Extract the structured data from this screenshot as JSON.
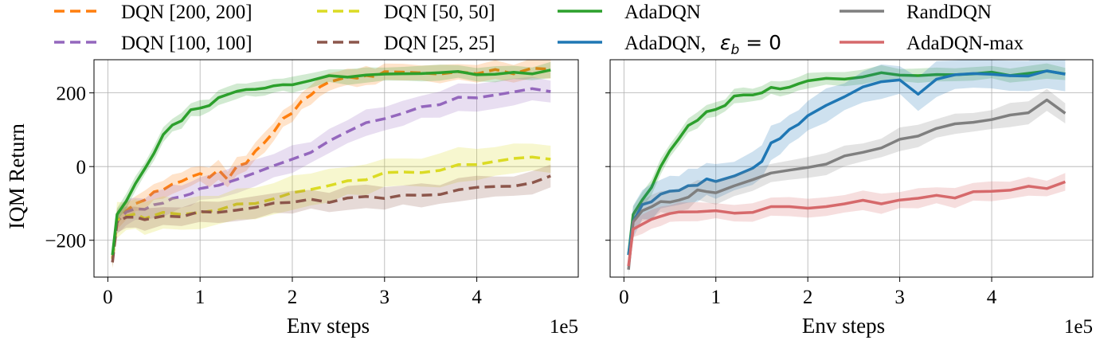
{
  "chart_data": [
    {
      "type": "line",
      "panel": "left",
      "xlabel": "Env steps",
      "ylabel": "IQM Return",
      "x_multiplier_label": "1e5",
      "xlim": [
        -0.15,
        5.1
      ],
      "ylim": [
        -300,
        290
      ],
      "xticks": [
        0,
        1,
        2,
        3,
        4
      ],
      "xtick_labels": [
        "0",
        "1",
        "2",
        "3",
        "4"
      ],
      "yticks": [
        -200,
        0,
        200
      ],
      "ytick_labels": [
        "−200",
        "0",
        "200"
      ],
      "grid": true,
      "series": [
        {
          "key": "dqn200",
          "name": "DQN [200, 200]",
          "style": "dashed",
          "color": "#ff7f0e",
          "x": [
            0.05,
            0.1,
            0.2,
            0.3,
            0.4,
            0.5,
            0.6,
            0.7,
            0.8,
            0.9,
            1.0,
            1.1,
            1.2,
            1.3,
            1.4,
            1.5,
            1.6,
            1.7,
            1.8,
            1.9,
            2.0,
            2.1,
            2.2,
            2.3,
            2.4,
            2.5,
            2.6,
            2.7,
            2.8,
            2.9,
            3.0,
            3.2,
            3.4,
            3.6,
            3.8,
            4.0,
            4.2,
            4.4,
            4.6,
            4.8
          ],
          "y": [
            -250,
            -150,
            -115,
            -100,
            -85,
            -70,
            -60,
            -50,
            -40,
            -30,
            -20,
            -25,
            -15,
            -30,
            -5,
            10,
            40,
            70,
            95,
            130,
            150,
            180,
            200,
            220,
            230,
            235,
            240,
            245,
            248,
            250,
            255,
            250,
            255,
            252,
            258,
            255,
            260,
            255,
            262,
            258
          ],
          "band": 25
        },
        {
          "key": "dqn100",
          "name": "DQN [100, 100]",
          "style": "dashed",
          "color": "#9467bd",
          "x": [
            0.05,
            0.1,
            0.2,
            0.3,
            0.4,
            0.5,
            0.6,
            0.7,
            0.8,
            0.9,
            1.0,
            1.2,
            1.4,
            1.6,
            1.8,
            2.0,
            2.2,
            2.4,
            2.6,
            2.8,
            3.0,
            3.2,
            3.4,
            3.6,
            3.8,
            4.0,
            4.2,
            4.4,
            4.6,
            4.8
          ],
          "y": [
            -250,
            -150,
            -125,
            -115,
            -110,
            -100,
            -95,
            -85,
            -80,
            -70,
            -60,
            -50,
            -40,
            -20,
            0,
            20,
            40,
            70,
            95,
            115,
            135,
            150,
            165,
            175,
            185,
            190,
            195,
            200,
            205,
            200
          ],
          "band": 35
        },
        {
          "key": "dqn50",
          "name": "DQN [50, 50]",
          "style": "dashed",
          "color": "#dbdb24",
          "x": [
            0.05,
            0.1,
            0.2,
            0.3,
            0.4,
            0.6,
            0.8,
            1.0,
            1.2,
            1.4,
            1.6,
            1.8,
            2.0,
            2.2,
            2.4,
            2.6,
            2.8,
            3.0,
            3.2,
            3.4,
            3.6,
            3.8,
            4.0,
            4.2,
            4.4,
            4.6,
            4.8
          ],
          "y": [
            -250,
            -145,
            -130,
            -130,
            -135,
            -130,
            -125,
            -120,
            -115,
            -105,
            -100,
            -90,
            -75,
            -60,
            -50,
            -40,
            -30,
            -20,
            -15,
            -10,
            -5,
            0,
            5,
            10,
            15,
            20,
            25
          ],
          "band": 45
        },
        {
          "key": "dqn25",
          "name": "DQN [25, 25]",
          "style": "dashed",
          "color": "#8c564b",
          "x": [
            0.05,
            0.1,
            0.2,
            0.3,
            0.4,
            0.6,
            0.8,
            1.0,
            1.2,
            1.4,
            1.6,
            1.8,
            2.0,
            2.2,
            2.4,
            2.6,
            2.8,
            3.0,
            3.2,
            3.4,
            3.6,
            3.8,
            4.0,
            4.2,
            4.4,
            4.6,
            4.8
          ],
          "y": [
            -260,
            -150,
            -140,
            -140,
            -138,
            -135,
            -130,
            -128,
            -120,
            -115,
            -110,
            -105,
            -100,
            -95,
            -92,
            -88,
            -85,
            -80,
            -78,
            -75,
            -70,
            -65,
            -60,
            -55,
            -50,
            -45,
            -30
          ],
          "band": 30
        },
        {
          "key": "ada",
          "name": "AdaDQN",
          "style": "solid",
          "color": "#2ca02c",
          "x": [
            0.05,
            0.1,
            0.2,
            0.3,
            0.4,
            0.5,
            0.6,
            0.7,
            0.8,
            0.9,
            1.0,
            1.1,
            1.2,
            1.3,
            1.4,
            1.5,
            1.6,
            1.7,
            1.8,
            1.9,
            2.0,
            2.2,
            2.4,
            2.6,
            2.8,
            3.0,
            3.2,
            3.4,
            3.6,
            3.8,
            4.0,
            4.2,
            4.4,
            4.6,
            4.8
          ],
          "y": [
            -240,
            -130,
            -90,
            -50,
            0,
            40,
            80,
            110,
            130,
            150,
            160,
            170,
            185,
            195,
            200,
            205,
            210,
            215,
            218,
            222,
            228,
            235,
            240,
            245,
            248,
            255,
            252,
            255,
            254,
            253,
            255,
            253,
            252,
            256,
            257
          ],
          "band": 20
        }
      ]
    },
    {
      "type": "line",
      "panel": "right",
      "xlabel": "Env steps",
      "x_multiplier_label": "1e5",
      "xlim": [
        -0.15,
        5.1
      ],
      "ylim": [
        -300,
        290
      ],
      "xticks": [
        0,
        1,
        2,
        3,
        4
      ],
      "xtick_labels": [
        "0",
        "1",
        "2",
        "3",
        "4"
      ],
      "yticks": [
        -200,
        0,
        200
      ],
      "ytick_labels": [
        "",
        "",
        ""
      ],
      "grid": true,
      "series": [
        {
          "key": "ada",
          "name": "AdaDQN",
          "style": "solid",
          "color": "#2ca02c",
          "x": [
            0.05,
            0.1,
            0.2,
            0.3,
            0.4,
            0.5,
            0.6,
            0.7,
            0.8,
            0.9,
            1.0,
            1.1,
            1.2,
            1.3,
            1.4,
            1.5,
            1.6,
            1.7,
            1.8,
            1.9,
            2.0,
            2.2,
            2.4,
            2.6,
            2.8,
            3.0,
            3.2,
            3.4,
            3.6,
            3.8,
            4.0,
            4.2,
            4.4,
            4.6,
            4.8
          ],
          "y": [
            -240,
            -130,
            -90,
            -50,
            0,
            40,
            80,
            110,
            130,
            150,
            160,
            170,
            185,
            195,
            200,
            205,
            210,
            215,
            218,
            222,
            228,
            235,
            240,
            245,
            248,
            255,
            252,
            255,
            254,
            253,
            255,
            253,
            252,
            256,
            257
          ],
          "band": 20
        },
        {
          "key": "ada_eps0",
          "name": "AdaDQN, ",
          "style": "solid",
          "color": "#1f77b4",
          "x": [
            0.05,
            0.1,
            0.2,
            0.3,
            0.4,
            0.5,
            0.6,
            0.7,
            0.8,
            0.9,
            1.0,
            1.2,
            1.4,
            1.5,
            1.6,
            1.7,
            1.8,
            1.9,
            2.0,
            2.2,
            2.4,
            2.6,
            2.8,
            3.0,
            3.2,
            3.4,
            3.6,
            3.8,
            4.0,
            4.2,
            4.4,
            4.6,
            4.8
          ],
          "y": [
            -240,
            -150,
            -110,
            -90,
            -75,
            -65,
            -60,
            -50,
            -45,
            -40,
            -35,
            -25,
            -10,
            20,
            60,
            80,
            100,
            115,
            140,
            160,
            185,
            215,
            230,
            240,
            200,
            235,
            245,
            250,
            248,
            252,
            250,
            254,
            252
          ],
          "band": 45
        },
        {
          "key": "rand",
          "name": "RandDQN",
          "style": "solid",
          "color": "#7f7f7f",
          "x": [
            0.05,
            0.1,
            0.2,
            0.3,
            0.4,
            0.5,
            0.6,
            0.7,
            0.8,
            0.9,
            1.0,
            1.2,
            1.4,
            1.6,
            1.8,
            2.0,
            2.2,
            2.4,
            2.6,
            2.8,
            3.0,
            3.2,
            3.4,
            3.6,
            3.8,
            4.0,
            4.2,
            4.4,
            4.6,
            4.8
          ],
          "y": [
            -280,
            -150,
            -120,
            -105,
            -95,
            -90,
            -85,
            -78,
            -70,
            -68,
            -65,
            -55,
            -40,
            -20,
            -10,
            0,
            10,
            25,
            40,
            55,
            70,
            85,
            100,
            110,
            120,
            130,
            140,
            150,
            185,
            140
          ],
          "band": 30
        },
        {
          "key": "adamax",
          "name": "AdaDQN-max",
          "style": "solid",
          "color": "#d6696b",
          "x": [
            0.05,
            0.1,
            0.2,
            0.3,
            0.4,
            0.5,
            0.6,
            0.8,
            1.0,
            1.2,
            1.4,
            1.6,
            1.8,
            2.0,
            2.2,
            2.4,
            2.6,
            2.8,
            3.0,
            3.2,
            3.4,
            3.6,
            3.8,
            4.0,
            4.2,
            4.4,
            4.6,
            4.8
          ],
          "y": [
            -270,
            -170,
            -150,
            -140,
            -135,
            -130,
            -130,
            -128,
            -125,
            -120,
            -118,
            -115,
            -112,
            -110,
            -105,
            -100,
            -98,
            -95,
            -90,
            -85,
            -82,
            -80,
            -75,
            -70,
            -68,
            -60,
            -55,
            -45
          ],
          "band": 25
        }
      ]
    }
  ],
  "legend": {
    "items": [
      {
        "key": "dqn200",
        "label": "DQN [200, 200]",
        "style": "dashed",
        "color": "#ff7f0e"
      },
      {
        "key": "dqn100",
        "label": "DQN [100, 100]",
        "style": "dashed",
        "color": "#9467bd"
      },
      {
        "key": "dqn50",
        "label": "DQN [50, 50]",
        "style": "dashed",
        "color": "#dbdb24"
      },
      {
        "key": "dqn25",
        "label": "DQN [25, 25]",
        "style": "dashed",
        "color": "#8c564b"
      },
      {
        "key": "ada",
        "label": "AdaDQN",
        "style": "solid",
        "color": "#2ca02c"
      },
      {
        "key": "ada_eps0",
        "label": "AdaDQN, ",
        "math": "ε_b = 0",
        "math_main": "ε",
        "math_sub": "b",
        "math_rest": " = 0",
        "style": "solid",
        "color": "#1f77b4"
      },
      {
        "key": "rand",
        "label": "RandDQN",
        "style": "solid",
        "color": "#7f7f7f"
      },
      {
        "key": "adamax",
        "label": "AdaDQN-max",
        "style": "solid",
        "color": "#d6696b"
      }
    ]
  }
}
